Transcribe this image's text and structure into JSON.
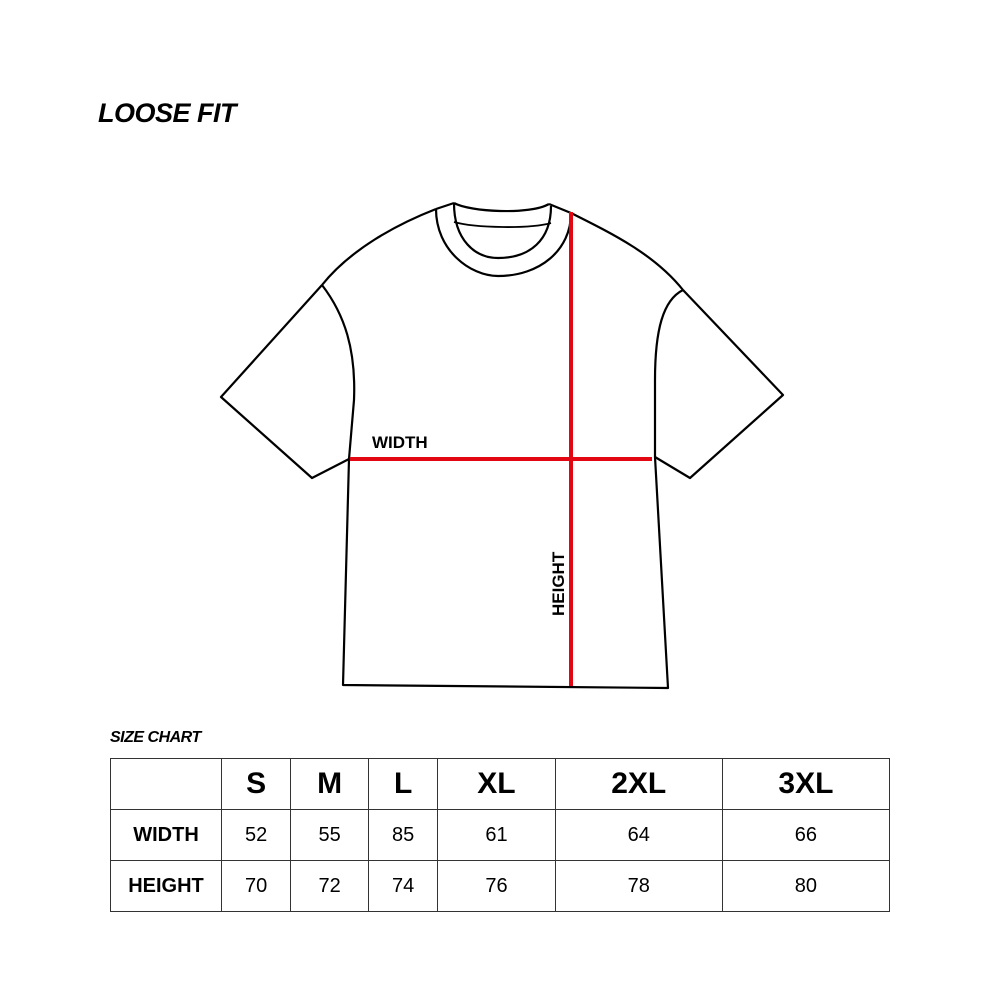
{
  "title": "LOOSE FIT",
  "diagram": {
    "width_label": "WIDTH",
    "height_label": "HEIGHT",
    "outline_color": "#000000",
    "measure_color": "#e30613"
  },
  "size_chart": {
    "title": "SIZE CHART",
    "sizes": [
      "S",
      "M",
      "L",
      "XL",
      "2XL",
      "3XL"
    ],
    "rows": [
      {
        "label": "WIDTH",
        "values": [
          "52",
          "55",
          "85",
          "61",
          "64",
          "66"
        ]
      },
      {
        "label": "HEIGHT",
        "values": [
          "70",
          "72",
          "74",
          "76",
          "78",
          "80"
        ]
      }
    ]
  }
}
